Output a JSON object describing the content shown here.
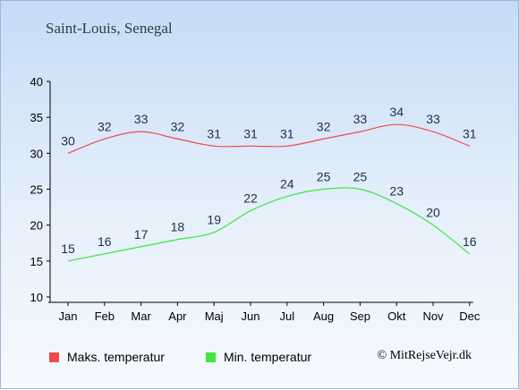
{
  "chart_data": {
    "type": "line",
    "title": "Saint-Louis, Senegal",
    "categories": [
      "Jan",
      "Feb",
      "Mar",
      "Apr",
      "Maj",
      "Jun",
      "Jul",
      "Aug",
      "Sep",
      "Okt",
      "Nov",
      "Dec"
    ],
    "ylim": [
      10,
      40
    ],
    "yticks": [
      10,
      15,
      20,
      25,
      30,
      35,
      40
    ],
    "grid": false,
    "legend_position": "bottom-left",
    "series": [
      {
        "name": "Maks. temperatur",
        "color": "#f04a4a",
        "values": [
          30,
          32,
          33,
          32,
          31,
          31,
          31,
          32,
          33,
          34,
          33,
          31
        ]
      },
      {
        "name": "Min. temperatur",
        "color": "#3ee63e",
        "values": [
          15,
          16,
          17,
          18,
          19,
          22,
          24,
          25,
          25,
          23,
          20,
          16
        ]
      }
    ]
  },
  "credit": "© MitRejseVejr.dk"
}
